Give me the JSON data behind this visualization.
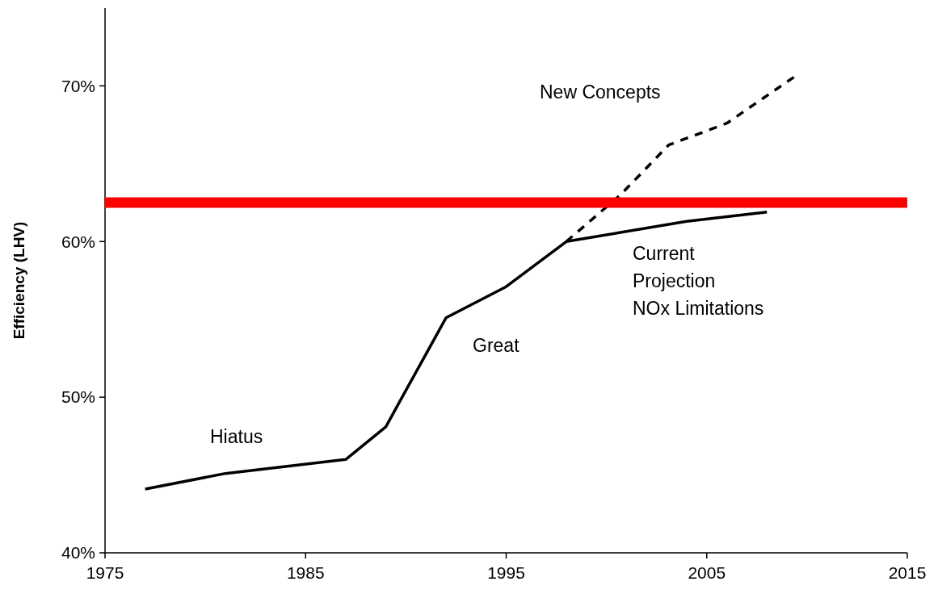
{
  "chart_data": {
    "type": "line",
    "ylabel": "Efficiency (LHV)",
    "xlim": [
      1975,
      2015
    ],
    "xticks": [
      1975,
      1985,
      1995,
      2005,
      2015
    ],
    "ylim": [
      40,
      75
    ],
    "yticks": [
      {
        "value": 40,
        "label": "40%"
      },
      {
        "value": 50,
        "label": "50%"
      },
      {
        "value": 60,
        "label": "60%"
      },
      {
        "value": 70,
        "label": "70%"
      }
    ],
    "series": [
      {
        "color": "#000000",
        "line_style": "solid",
        "x": [
          1977,
          1981,
          1987,
          1989,
          1992,
          1995,
          1998,
          2004,
          2008
        ],
        "values": [
          44.1,
          45.1,
          46,
          48.1,
          55.1,
          57.1,
          60,
          61.3,
          61.9
        ]
      },
      {
        "color": "#000000",
        "line_style": "dashed",
        "x": [
          1998,
          2000.7,
          2003.1,
          2006,
          2009.5
        ],
        "values": [
          60,
          63,
          66.2,
          67.6,
          70.7
        ]
      }
    ],
    "ref_lines": [
      {
        "axis": "y",
        "value": 62.5,
        "color": "#ff0000"
      }
    ],
    "annotations": [
      "New Concepts",
      "Current\nProjection\nNOx Limitations",
      "Great",
      "Hiatus"
    ],
    "grid": false,
    "marker": "none"
  }
}
